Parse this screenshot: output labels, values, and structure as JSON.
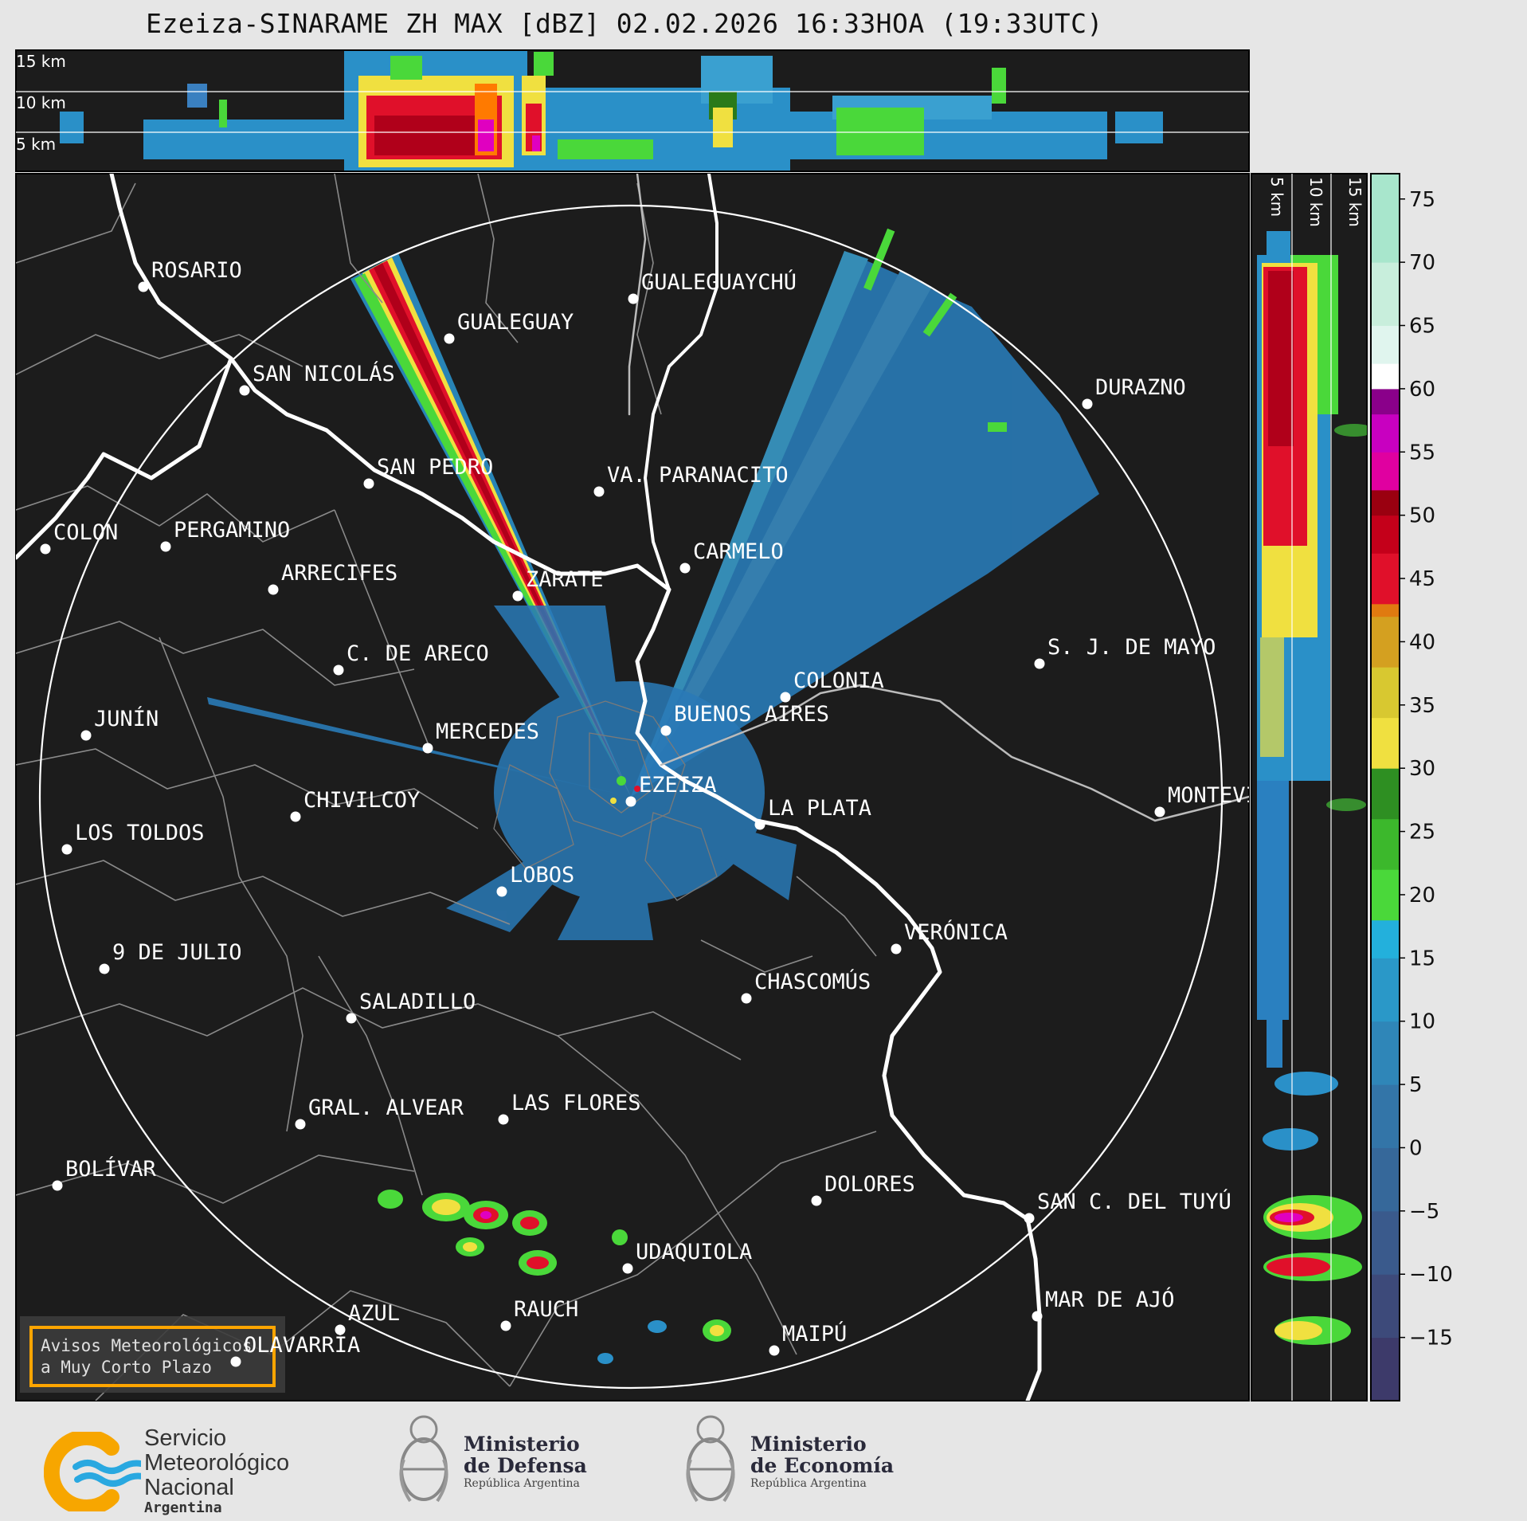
{
  "title": "Ezeiza-SINARAME ZH MAX [dBZ] 02.02.2026 16:33HOA (19:33UTC)",
  "top_panel": {
    "height_labels": [
      "15 km",
      "10 km",
      "5 km"
    ]
  },
  "side_panel": {
    "height_labels": [
      "5 km",
      "10 km",
      "15 km"
    ]
  },
  "colorbar": {
    "unit": "dBZ",
    "ticks": [
      "75",
      "70",
      "65",
      "60",
      "55",
      "50",
      "45",
      "40",
      "35",
      "30",
      "25",
      "20",
      "15",
      "10",
      "5",
      "0",
      "−5",
      "−10",
      "−15"
    ],
    "range": [
      -20,
      77
    ]
  },
  "cities": [
    {
      "name": "ROSARIO"
    },
    {
      "name": "GUALEGUAYCHÚ"
    },
    {
      "name": "GUALEGUAY"
    },
    {
      "name": "SAN NICOLÁS"
    },
    {
      "name": "DURAZNO"
    },
    {
      "name": "SAN PEDRO"
    },
    {
      "name": "VA. PARANACITO"
    },
    {
      "name": "COLON"
    },
    {
      "name": "PERGAMINO"
    },
    {
      "name": "CARMELO"
    },
    {
      "name": "ARRECIFES"
    },
    {
      "name": "ZÁRATE"
    },
    {
      "name": "S. J. DE MAYO"
    },
    {
      "name": "C. DE ARECO"
    },
    {
      "name": "COLONIA"
    },
    {
      "name": "BUENOS AIRES"
    },
    {
      "name": "JUNÍN"
    },
    {
      "name": "MERCEDES"
    },
    {
      "name": "EZEIZA"
    },
    {
      "name": "MONTEVIDEO"
    },
    {
      "name": "CHIVILCOY"
    },
    {
      "name": "LA PLATA"
    },
    {
      "name": "LOS TOLDOS"
    },
    {
      "name": "LOBOS"
    },
    {
      "name": "VERÓNICA"
    },
    {
      "name": "9 DE JULIO"
    },
    {
      "name": "CHASCOMÚS"
    },
    {
      "name": "SALADILLO"
    },
    {
      "name": "GRAL. ALVEAR"
    },
    {
      "name": "LAS FLORES"
    },
    {
      "name": "BOLÍVAR"
    },
    {
      "name": "DOLORES"
    },
    {
      "name": "SAN C. DEL TUYÚ"
    },
    {
      "name": "UDAQUIOLA"
    },
    {
      "name": "MAR DE AJÓ"
    },
    {
      "name": "AZUL"
    },
    {
      "name": "RAUCH"
    },
    {
      "name": "OLAVARRÍA"
    },
    {
      "name": "MAIPÚ"
    }
  ],
  "alert_box": {
    "line1": "Avisos Meteorológicos",
    "line2": "a Muy Corto Plazo"
  },
  "sponsors": {
    "smn": {
      "line1": "Servicio",
      "line2": "Meteorológico",
      "line3": "Nacional",
      "line4": "Argentina"
    },
    "defensa": {
      "line1": "Ministerio",
      "line2": "de Defensa",
      "line3": "República Argentina"
    },
    "economia": {
      "line1": "Ministerio",
      "line2": "de Economía",
      "line3": "República Argentina"
    }
  },
  "colors": {
    "map_background": "#1c1c1c",
    "coast": "#ffffff",
    "borders": "#8a8a8a",
    "alert_border": "#ffa500",
    "smn_orange": "#f7a600",
    "smn_blue": "#29a8e0"
  }
}
